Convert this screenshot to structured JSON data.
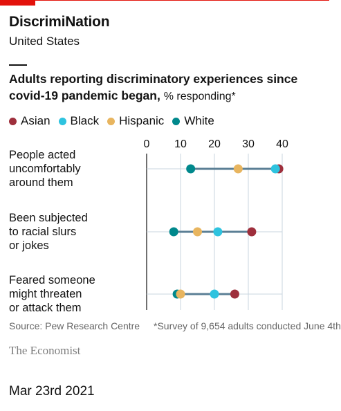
{
  "header": {
    "headline": "DiscrimiNation",
    "subhead": "United States"
  },
  "chart_data": {
    "type": "scatter",
    "title": "Adults reporting discriminatory experiences since covid-19 pandemic began,",
    "unit": "% responding*",
    "xlim": [
      0,
      40
    ],
    "xticks": [
      0,
      10,
      20,
      30,
      40
    ],
    "grid": true,
    "legend_placement": "top",
    "categories": [
      [
        "People acted",
        "uncomfortably",
        "around them"
      ],
      [
        "Been subjected",
        "to racial slurs",
        "or jokes"
      ],
      [
        "Feared someone",
        "might threaten",
        "or attack them"
      ]
    ],
    "series": [
      {
        "name": "Asian",
        "color": "#9e2f3c",
        "values": [
          39,
          31,
          26
        ]
      },
      {
        "name": "Black",
        "color": "#2ec3df",
        "values": [
          38,
          21,
          20
        ]
      },
      {
        "name": "Hispanic",
        "color": "#e8b55f",
        "values": [
          27,
          15,
          10
        ]
      },
      {
        "name": "White",
        "color": "#00888c",
        "values": [
          13,
          8,
          9
        ]
      }
    ]
  },
  "footer": {
    "source": "Source: Pew Research Centre",
    "footnote": "*Survey of 9,654 adults conducted June 4th",
    "brand": "The Economist",
    "date": "Mar 23rd 2021"
  }
}
